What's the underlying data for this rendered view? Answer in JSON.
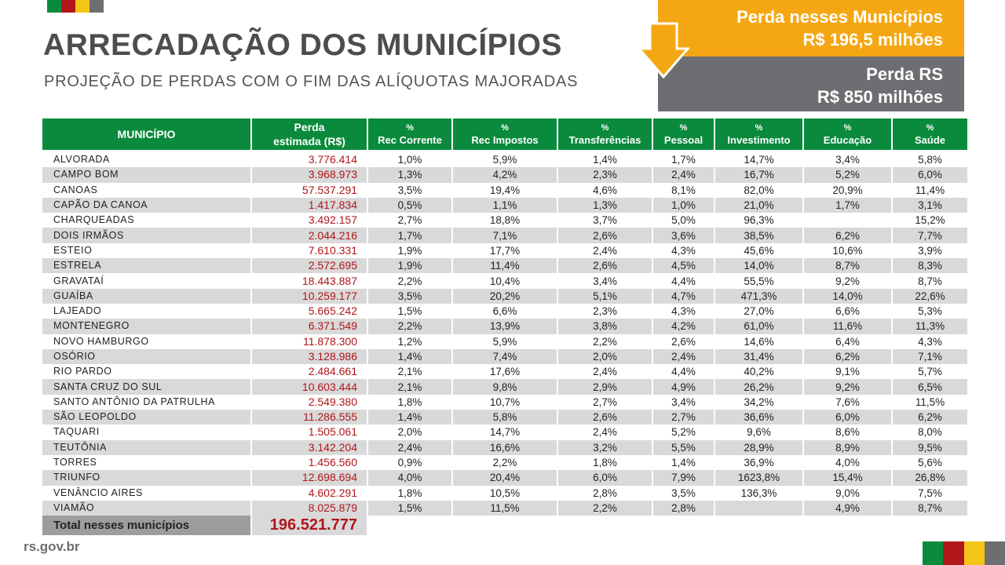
{
  "header": {
    "title": "ARRECADAÇÃO DOS MUNICÍPIOS",
    "subtitle": "PROJEÇÃO DE PERDAS COM O FIM DAS ALÍQUOTAS MAJORADAS"
  },
  "callouts": {
    "municipios_line1": "Perda nesses Municípios",
    "municipios_line2": "R$ 196,5 milhões",
    "rs_line1": "Perda RS",
    "rs_line2": "R$ 850 milhões"
  },
  "colors": {
    "green": "#0a8a3c",
    "red": "#b0161a",
    "yellow": "#f5a713",
    "gray": "#6d6e71"
  },
  "table": {
    "headers": {
      "municipio": "MUNICÍPIO",
      "perda_line1": "Perda",
      "perda_line2": "estimada (R$)",
      "pct_symbol": "%",
      "rec_corrente": "Rec Corrente",
      "rec_impostos": "Rec Impostos",
      "transferencias": "Transferências",
      "pessoal": "Pessoal",
      "investimento": "Investimento",
      "educacao": "Educação",
      "saude": "Saúde"
    },
    "rows": [
      [
        "ALVORADA",
        "3.776.414",
        "1,0%",
        "5,9%",
        "1,4%",
        "1,7%",
        "14,7%",
        "3,4%",
        "5,8%"
      ],
      [
        "CAMPO BOM",
        "3.968.973",
        "1,3%",
        "4,2%",
        "2,3%",
        "2,4%",
        "16,7%",
        "5,2%",
        "6,0%"
      ],
      [
        "CANOAS",
        "57.537.291",
        "3,5%",
        "19,4%",
        "4,6%",
        "8,1%",
        "82,0%",
        "20,9%",
        "11,4%"
      ],
      [
        "CAPÃO DA CANOA",
        "1.417.834",
        "0,5%",
        "1,1%",
        "1,3%",
        "1,0%",
        "21,0%",
        "1,7%",
        "3,1%"
      ],
      [
        "CHARQUEADAS",
        "3.492.157",
        "2,7%",
        "18,8%",
        "3,7%",
        "5,0%",
        "96,3%",
        "",
        "15,2%"
      ],
      [
        "DOIS IRMÃOS",
        "2.044.216",
        "1,7%",
        "7,1%",
        "2,6%",
        "3,6%",
        "38,5%",
        "6,2%",
        "7,7%"
      ],
      [
        "ESTEIO",
        "7.610.331",
        "1,9%",
        "17,7%",
        "2,4%",
        "4,3%",
        "45,6%",
        "10,6%",
        "3,9%"
      ],
      [
        "ESTRELA",
        "2.572.695",
        "1,9%",
        "11,4%",
        "2,6%",
        "4,5%",
        "14,0%",
        "8,7%",
        "8,3%"
      ],
      [
        "GRAVATAÍ",
        "18.443.887",
        "2,2%",
        "10,4%",
        "3,4%",
        "4,4%",
        "55,5%",
        "9,2%",
        "8,7%"
      ],
      [
        "GUAÍBA",
        "10.259.177",
        "3,5%",
        "20,2%",
        "5,1%",
        "4,7%",
        "471,3%",
        "14,0%",
        "22,6%"
      ],
      [
        "LAJEADO",
        "5.665.242",
        "1,5%",
        "6,6%",
        "2,3%",
        "4,3%",
        "27,0%",
        "6,6%",
        "5,3%"
      ],
      [
        "MONTENEGRO",
        "6.371.549",
        "2,2%",
        "13,9%",
        "3,8%",
        "4,2%",
        "61,0%",
        "11,6%",
        "11,3%"
      ],
      [
        "NOVO HAMBURGO",
        "11.878.300",
        "1,2%",
        "5,9%",
        "2,2%",
        "2,6%",
        "14,6%",
        "6,4%",
        "4,3%"
      ],
      [
        "OSÓRIO",
        "3.128.986",
        "1,4%",
        "7,4%",
        "2,0%",
        "2,4%",
        "31,4%",
        "6,2%",
        "7,1%"
      ],
      [
        "RIO PARDO",
        "2.484.661",
        "2,1%",
        "17,6%",
        "2,4%",
        "4,4%",
        "40,2%",
        "9,1%",
        "5,7%"
      ],
      [
        "SANTA CRUZ DO SUL",
        "10.603.444",
        "2,1%",
        "9,8%",
        "2,9%",
        "4,9%",
        "26,2%",
        "9,2%",
        "6,5%"
      ],
      [
        "SANTO ANTÔNIO DA PATRULHA",
        "2.549.380",
        "1,8%",
        "10,7%",
        "2,7%",
        "3,4%",
        "34,2%",
        "7,6%",
        "11,5%"
      ],
      [
        "SÃO LEOPOLDO",
        "11.286.555",
        "1,4%",
        "5,8%",
        "2,6%",
        "2,7%",
        "36,6%",
        "6,0%",
        "6,2%"
      ],
      [
        "TAQUARI",
        "1.505.061",
        "2,0%",
        "14,7%",
        "2,4%",
        "5,2%",
        "9,6%",
        "8,6%",
        "8,0%"
      ],
      [
        "TEUTÔNIA",
        "3.142.204",
        "2,4%",
        "16,6%",
        "3,2%",
        "5,5%",
        "28,9%",
        "8,9%",
        "9,5%"
      ],
      [
        "TORRES",
        "1.456.560",
        "0,9%",
        "2,2%",
        "1,8%",
        "1,4%",
        "36,9%",
        "4,0%",
        "5,6%"
      ],
      [
        "TRIUNFO",
        "12.698.694",
        "4,0%",
        "20,4%",
        "6,0%",
        "7,9%",
        "1623,8%",
        "15,4%",
        "26,8%"
      ],
      [
        "VENÂNCIO AIRES",
        "4.602.291",
        "1,8%",
        "10,5%",
        "2,8%",
        "3,5%",
        "136,3%",
        "9,0%",
        "7,5%"
      ],
      [
        "VIAMÃO",
        "8.025.879",
        "1,5%",
        "11,5%",
        "2,2%",
        "2,8%",
        "",
        "4,9%",
        "8,7%"
      ]
    ],
    "total_label": "Total nesses municípios",
    "total_value": "196.521.777"
  },
  "footer": {
    "site": "rs.gov.br"
  }
}
